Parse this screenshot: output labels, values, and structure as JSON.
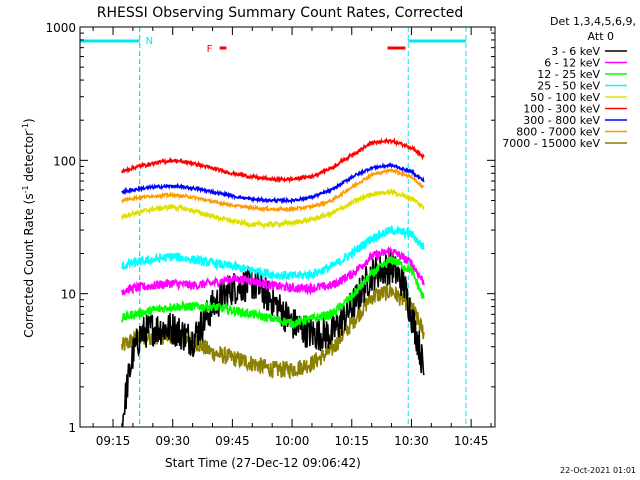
{
  "chart_data": {
    "type": "line",
    "title": "RHESSI Observing Summary Count Rates, Corrected",
    "xlabel": "Start Time (27-Dec-12 09:06:42)",
    "ylabel_parts": [
      "Corrected Count Rate (s",
      "-1",
      " detector",
      "-1",
      ")"
    ],
    "detector_info": "Det 1,3,4,5,6,9,",
    "attenuator_info": "Att 0",
    "timestamp": "22-Oct-2021 01:01",
    "y_scale": "log",
    "ylim": [
      1,
      1000
    ],
    "y_ticks": [
      {
        "v": 1,
        "label": "1"
      },
      {
        "v": 10,
        "label": "10"
      },
      {
        "v": 100,
        "label": "100"
      },
      {
        "v": 1000,
        "label": "1000"
      }
    ],
    "x_unit": "minutes after 09:00",
    "xlim": [
      6.7,
      111
    ],
    "x_ticks": [
      {
        "t": 15,
        "label": "09:15"
      },
      {
        "t": 30,
        "label": "09:30"
      },
      {
        "t": 45,
        "label": "09:45"
      },
      {
        "t": 60,
        "label": "10:00"
      },
      {
        "t": 75,
        "label": "10:15"
      },
      {
        "t": 90,
        "label": "10:30"
      },
      {
        "t": 105,
        "label": "10:45"
      }
    ],
    "data_window": [
      17.2,
      93.2
    ],
    "night_intervals": [
      {
        "label": "",
        "start": 6.7,
        "end": 21.7,
        "color": "#00e6f0"
      },
      {
        "label": "N",
        "start": 21.7,
        "end": 21.7,
        "color": "#00e6f0"
      },
      {
        "label": "",
        "start": 89.2,
        "end": 103.7,
        "color": "#00e6f0"
      }
    ],
    "flare_flags": [
      {
        "label": "F",
        "start": 41.8,
        "end": 43.5,
        "color": "#ff0000"
      },
      {
        "label": "",
        "start": 84.0,
        "end": 88.5,
        "color": "#ff0000"
      }
    ],
    "series": [
      {
        "name": "3 - 6 keV",
        "color": "#000000",
        "noise": 0.3,
        "t": [
          17.2,
          18.5,
          20.0,
          22.0,
          25.0,
          30.0,
          35.0,
          40.0,
          45.0,
          50.0,
          55.0,
          60.0,
          65.0,
          70.0,
          75.0,
          80.0,
          85.0,
          88.0,
          90.0,
          92.0,
          93.2
        ],
        "v": [
          1.0,
          2.0,
          3.5,
          5.0,
          5.5,
          5.5,
          4.5,
          8.0,
          11.0,
          12.0,
          9.0,
          6.0,
          5.0,
          5.0,
          8.0,
          14.0,
          16.0,
          12.0,
          7.0,
          4.0,
          2.5
        ]
      },
      {
        "name": "6 - 12 keV",
        "color": "#ff00ff",
        "noise": 0.08,
        "t": [
          17.2,
          20.0,
          25.0,
          30.0,
          35.0,
          40.0,
          45.0,
          50.0,
          55.0,
          60.0,
          65.0,
          70.0,
          75.0,
          80.0,
          85.0,
          90.0,
          93.2
        ],
        "v": [
          10.5,
          11.0,
          11.5,
          12.0,
          11.5,
          12.0,
          13.0,
          12.5,
          11.5,
          11.0,
          11.0,
          11.5,
          14.0,
          19.0,
          21.0,
          17.0,
          12.0
        ]
      },
      {
        "name": "12 - 25 keV",
        "color": "#00ff00",
        "noise": 0.08,
        "t": [
          17.2,
          20.0,
          25.0,
          30.0,
          35.0,
          40.0,
          45.0,
          50.0,
          55.0,
          60.0,
          65.0,
          70.0,
          75.0,
          80.0,
          85.0,
          90.0,
          93.2
        ],
        "v": [
          6.5,
          7.0,
          7.5,
          8.0,
          8.0,
          8.0,
          7.5,
          7.0,
          6.5,
          6.0,
          6.5,
          7.0,
          9.5,
          14.0,
          18.0,
          15.0,
          9.0
        ]
      },
      {
        "name": "25 - 50 keV",
        "color": "#00ffff",
        "noise": 0.08,
        "t": [
          17.2,
          20.0,
          25.0,
          30.0,
          35.0,
          40.0,
          45.0,
          50.0,
          55.0,
          60.0,
          65.0,
          70.0,
          75.0,
          80.0,
          85.0,
          90.0,
          93.2
        ],
        "v": [
          16.0,
          17.0,
          18.0,
          19.0,
          18.0,
          17.0,
          16.0,
          15.0,
          14.0,
          13.5,
          14.0,
          16.0,
          20.0,
          26.0,
          30.0,
          28.0,
          22.0
        ]
      },
      {
        "name": "50 - 100 keV",
        "color": "#e0e000",
        "noise": 0.04,
        "t": [
          17.2,
          20.0,
          25.0,
          30.0,
          35.0,
          40.0,
          45.0,
          50.0,
          55.0,
          60.0,
          65.0,
          70.0,
          75.0,
          80.0,
          85.0,
          90.0,
          93.2
        ],
        "v": [
          38.0,
          40.0,
          43.0,
          45.0,
          42.0,
          38.0,
          35.0,
          33.0,
          33.0,
          34.0,
          36.0,
          40.0,
          48.0,
          56.0,
          58.0,
          52.0,
          44.0
        ]
      },
      {
        "name": "100 - 300 keV",
        "color": "#ff0000",
        "noise": 0.03,
        "t": [
          17.2,
          20.0,
          25.0,
          30.0,
          35.0,
          40.0,
          45.0,
          50.0,
          55.0,
          60.0,
          65.0,
          70.0,
          75.0,
          80.0,
          85.0,
          90.0,
          93.2
        ],
        "v": [
          82.0,
          88.0,
          95.0,
          100.0,
          95.0,
          87.0,
          80.0,
          75.0,
          72.0,
          72.0,
          76.0,
          88.0,
          110.0,
          135.0,
          140.0,
          125.0,
          105.0
        ]
      },
      {
        "name": "300 - 800 keV",
        "color": "#0000ff",
        "noise": 0.025,
        "t": [
          17.2,
          20.0,
          25.0,
          30.0,
          35.0,
          40.0,
          45.0,
          50.0,
          55.0,
          60.0,
          65.0,
          70.0,
          75.0,
          80.0,
          85.0,
          90.0,
          93.2
        ],
        "v": [
          58.0,
          60.0,
          63.0,
          64.0,
          62.0,
          58.0,
          54.0,
          51.0,
          50.0,
          50.0,
          53.0,
          60.0,
          75.0,
          88.0,
          92.0,
          82.0,
          70.0
        ]
      },
      {
        "name": "800 - 7000 keV",
        "color": "#ff9a00",
        "noise": 0.025,
        "t": [
          17.2,
          20.0,
          25.0,
          30.0,
          35.0,
          40.0,
          45.0,
          50.0,
          55.0,
          60.0,
          65.0,
          70.0,
          75.0,
          80.0,
          85.0,
          90.0,
          93.2
        ],
        "v": [
          50.0,
          52.0,
          54.0,
          55.0,
          53.0,
          49.0,
          46.0,
          44.0,
          43.0,
          43.0,
          45.0,
          50.0,
          63.0,
          78.0,
          85.0,
          75.0,
          62.0
        ]
      },
      {
        "name": "7000 - 15000 keV",
        "color": "#8c8000",
        "noise": 0.15,
        "t": [
          17.2,
          20.0,
          25.0,
          30.0,
          35.0,
          40.0,
          45.0,
          50.0,
          55.0,
          60.0,
          65.0,
          70.0,
          75.0,
          80.0,
          85.0,
          90.0,
          93.2
        ],
        "v": [
          4.0,
          4.5,
          4.8,
          4.8,
          4.5,
          3.6,
          3.3,
          3.0,
          2.7,
          2.7,
          3.0,
          3.8,
          6.0,
          9.5,
          10.5,
          8.0,
          5.0
        ]
      }
    ]
  }
}
